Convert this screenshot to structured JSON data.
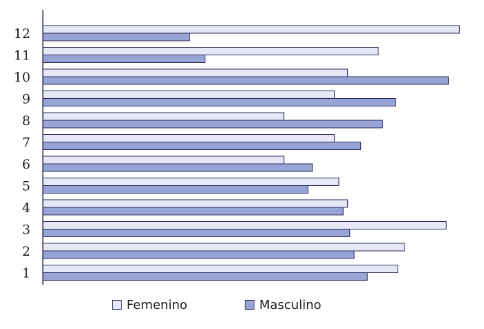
{
  "chart_data": {
    "type": "bar",
    "orientation": "horizontal",
    "categories": [
      "1",
      "2",
      "3",
      "4",
      "5",
      "6",
      "7",
      "8",
      "9",
      "10",
      "11",
      "12"
    ],
    "series": [
      {
        "name": "Femenino",
        "color": "#e6e9f5",
        "values": [
          81,
          82.5,
          92,
          69.5,
          67.5,
          55,
          66.5,
          55,
          66.5,
          69.5,
          76.5,
          95
        ]
      },
      {
        "name": "Masculino",
        "color": "#98a4d6",
        "values": [
          74,
          71,
          70,
          68.5,
          60.5,
          61.5,
          72.5,
          77.5,
          80.5,
          92.5,
          37,
          33.5
        ]
      }
    ],
    "xlim": [
      0,
      100
    ],
    "grid": false,
    "legend_position": "bottom",
    "title": "",
    "xlabel": "",
    "ylabel": ""
  }
}
